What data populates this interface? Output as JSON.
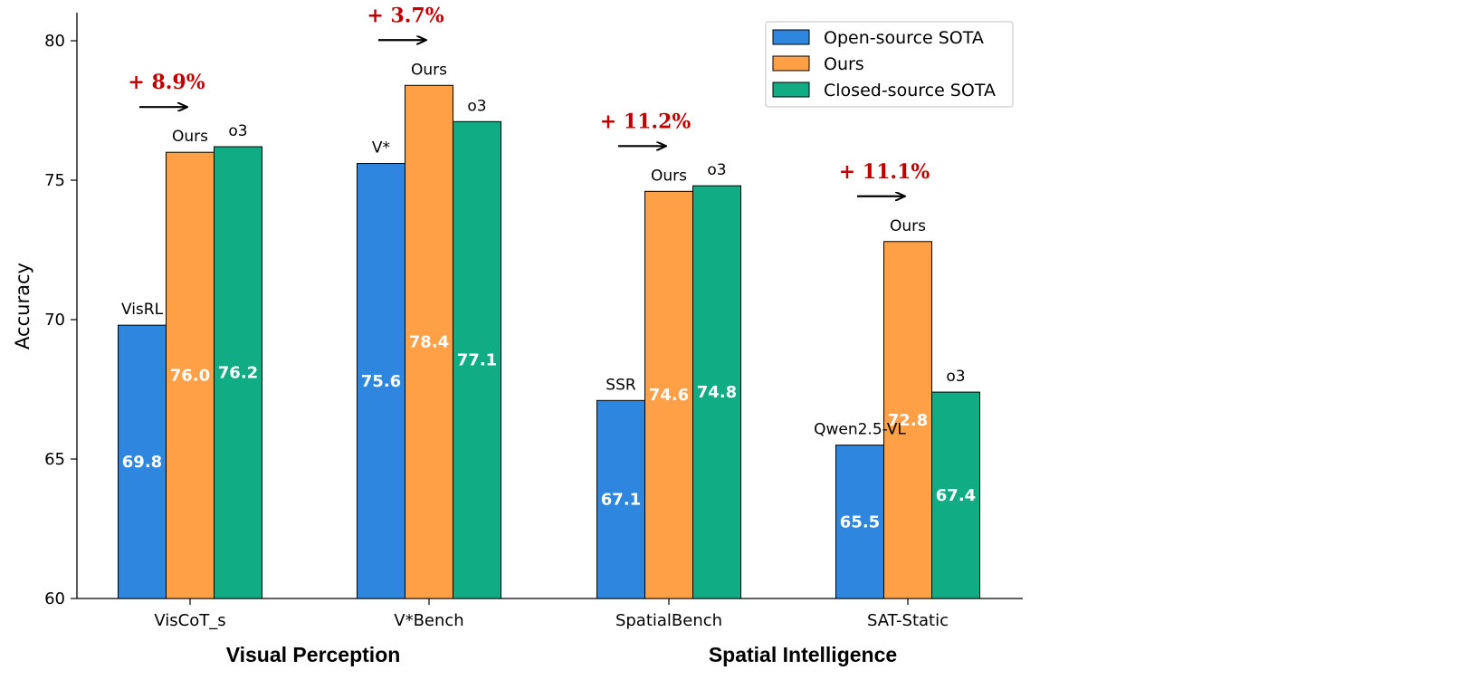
{
  "chart_data": {
    "type": "bar",
    "title": "",
    "xlabel": "",
    "ylabel": "Accuracy",
    "ylim": [
      60,
      81
    ],
    "yticks": [
      60,
      65,
      70,
      75,
      80
    ],
    "grid": false,
    "legend_position": "top-right",
    "categories": [
      "VisCoT_s",
      "V*Bench",
      "SpatialBench",
      "SAT-Static"
    ],
    "series": [
      {
        "name": "Open-source SOTA",
        "color": "#2E86DE",
        "values": [
          69.8,
          75.6,
          67.1,
          65.5
        ],
        "top_labels": [
          "VisRL",
          "V*",
          "SSR",
          "Qwen2.5-VL"
        ]
      },
      {
        "name": "Ours",
        "color": "#FFA046",
        "values": [
          76.0,
          78.4,
          74.6,
          72.8
        ],
        "top_labels": [
          "Ours",
          "Ours",
          "Ours",
          "Ours"
        ]
      },
      {
        "name": "Closed-source SOTA",
        "color": "#10AC84",
        "values": [
          76.2,
          77.1,
          74.8,
          67.4
        ],
        "top_labels": [
          "o3",
          "o3",
          "o3",
          "o3"
        ]
      }
    ],
    "annotations": [
      "+ 8.9%",
      "+ 3.7%",
      "+ 11.2%",
      "+ 11.1%"
    ],
    "annotation_color": "#C00000",
    "group_labels": [
      "Visual Perception",
      "Spatial Intelligence"
    ]
  }
}
